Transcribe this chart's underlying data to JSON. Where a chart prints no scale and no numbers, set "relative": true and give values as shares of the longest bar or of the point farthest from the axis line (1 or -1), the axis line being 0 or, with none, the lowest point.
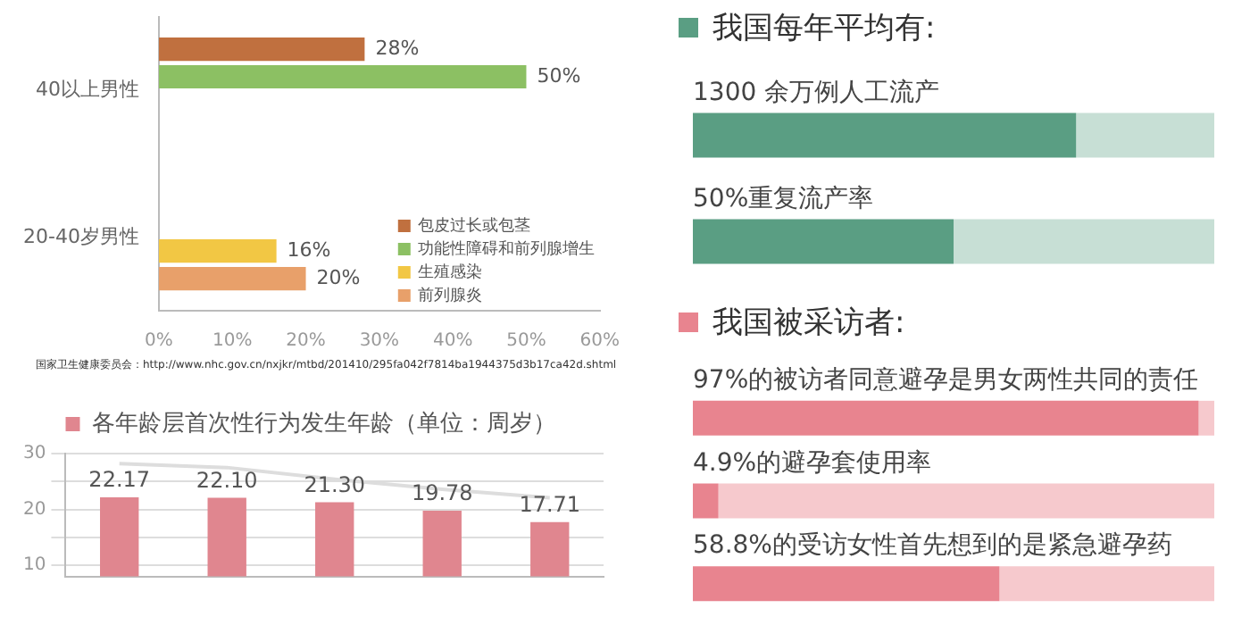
{
  "chart_data": [
    {
      "type": "bar",
      "orientation": "horizontal",
      "categories": [
        "40以上男性",
        "20-40岁男性"
      ],
      "series": [
        {
          "name": "包皮过长或包茎",
          "color": "#c0703f",
          "values": [
            28,
            null
          ],
          "value_labels": [
            "28%",
            null
          ]
        },
        {
          "name": "功能性障碍和前列腺增生",
          "color": "#8cc063",
          "values": [
            50,
            null
          ],
          "value_labels": [
            "50%",
            null
          ]
        },
        {
          "name": "生殖感染",
          "color": "#f2c744",
          "values": [
            null,
            16
          ],
          "value_labels": [
            null,
            "16%"
          ]
        },
        {
          "name": "前列腺炎",
          "color": "#e8a06a",
          "values": [
            null,
            20
          ],
          "value_labels": [
            null,
            "20%"
          ]
        }
      ],
      "xlim": [
        0,
        60
      ],
      "xticks": [
        {
          "value": 0,
          "label": "0%"
        },
        {
          "value": 10,
          "label": "10%"
        },
        {
          "value": 20,
          "label": "20%"
        },
        {
          "value": 30,
          "label": "30%"
        },
        {
          "value": 40,
          "label": "40%"
        },
        {
          "value": 50,
          "label": "50%"
        },
        {
          "value": 60,
          "label": "60%"
        }
      ],
      "legend": "bottom right",
      "annotations": [
        "国家卫生健康委员会：http://www.nhc.gov.cn/nxjkr/mtbd/201410/295fa042f7814ba1944375d3b17ca42d.shtml"
      ]
    },
    {
      "type": "bar",
      "categories": [
        null,
        null,
        null,
        null,
        null
      ],
      "series": [
        {
          "name": "各年龄层首次性行为发生年龄（单位：周岁）",
          "color": "#e0868f",
          "values": [
            22.17,
            22.1,
            21.3,
            19.78,
            17.71
          ],
          "value_labels": [
            "22.17",
            "22.10",
            "21.30",
            "19.78",
            "17.71"
          ]
        },
        {
          "type": "line",
          "color": "#dddddd",
          "values": [
            28.2,
            27.5,
            25.4,
            23.6,
            22.1
          ]
        }
      ],
      "ylim": [
        8,
        30
      ],
      "yticks": [
        10,
        {
          "value": 15,
          "label": null
        },
        20,
        {
          "value": 25,
          "label": null
        },
        30
      ],
      "grid": "y",
      "legend": "top",
      "marker": "none"
    },
    {
      "type": "bar",
      "orientation": "horizontal",
      "stacked": true,
      "relative": true,
      "title": "我国每年平均有:",
      "categories": [
        "1300 余万例人工流产",
        "50%重复流产率"
      ],
      "series": [
        {
          "color": "#5a9e83",
          "values": [
            0.735,
            0.5
          ]
        },
        {
          "color": "#c7dfd5",
          "values": [
            0.265,
            0.5
          ]
        }
      ]
    },
    {
      "type": "bar",
      "orientation": "horizontal",
      "stacked": true,
      "relative": true,
      "title": "我国被采访者:",
      "categories": [
        "97%的被访者同意避孕是男女两性共同的责任",
        "4.9%的避孕套使用率",
        "58.8%的受访女性首先想到的是紧急避孕药"
      ],
      "series": [
        {
          "color": "#e8848f",
          "values": [
            0.97,
            0.049,
            0.588
          ]
        },
        {
          "color": "#f6c9cd",
          "values": [
            0.03,
            0.951,
            0.412
          ]
        }
      ]
    }
  ]
}
